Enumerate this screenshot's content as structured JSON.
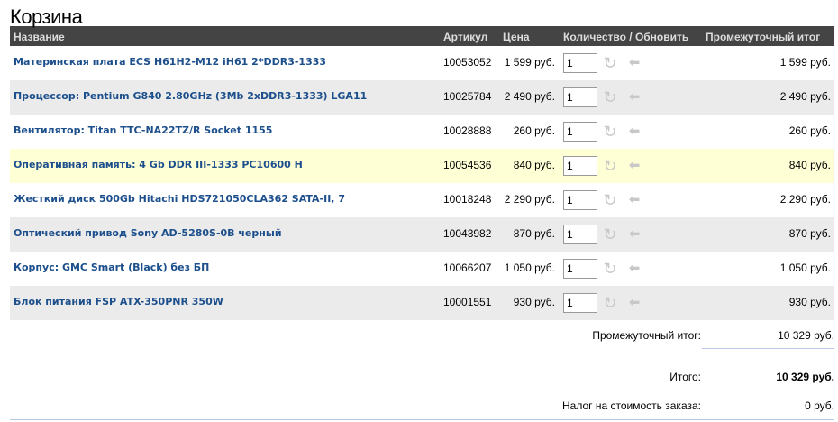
{
  "title": "Корзина",
  "columns": {
    "name": "Название",
    "sku": "Артикул",
    "price": "Цена",
    "qty": "Количество / Обновить",
    "subtotal": "Промежуточный итог"
  },
  "rows": [
    {
      "name": "Материнская плата ECS H61H2-M12 iH61 2*DDR3-1333",
      "sku": "10053052",
      "price": "1 599 руб.",
      "qty": "1",
      "subtotal": "1 599 руб."
    },
    {
      "name": "Процессор: Pentium G840 2.80GHz (3Mb 2xDDR3-1333) LGA11",
      "sku": "10025784",
      "price": "2 490 руб.",
      "qty": "1",
      "subtotal": "2 490 руб."
    },
    {
      "name": "Вентилятор: Titan TTC-NA22TZ/R Socket 1155",
      "sku": "10028888",
      "price": "260 руб.",
      "qty": "1",
      "subtotal": "260 руб."
    },
    {
      "name": "Оперативная память: 4 Gb DDR III-1333 PC10600 H",
      "sku": "10054536",
      "price": "840 руб.",
      "qty": "1",
      "subtotal": "840 руб."
    },
    {
      "name": "Жесткий диск 500Gb Hitachi HDS721050CLA362 SATA-II, 7",
      "sku": "10018248",
      "price": "2 290 руб.",
      "qty": "1",
      "subtotal": "2 290 руб."
    },
    {
      "name": "Оптический привод Sony AD-5280S-0B черный",
      "sku": "10043982",
      "price": "870 руб.",
      "qty": "1",
      "subtotal": "870 руб."
    },
    {
      "name": "Корпус: GMC Smart (Black) без БП",
      "sku": "10066207",
      "price": "1 050 руб.",
      "qty": "1",
      "subtotal": "1 050 руб."
    },
    {
      "name": "Блок питания FSP ATX-350PNR 350W",
      "sku": "10001551",
      "price": "930 руб.",
      "qty": "1",
      "subtotal": "930 руб."
    }
  ],
  "summary": {
    "subtotal_label": "Промежуточный итог:",
    "subtotal": "10 329 руб.",
    "total_label": "Итого:",
    "total": "10 329 руб.",
    "tax_label": "Налог на стоимость заказа:",
    "tax": "0 руб."
  },
  "colors": {
    "header_bg": "#444444",
    "link": "#1c4f8c",
    "row_alt": "#ebebeb",
    "row_highlight": "#ffffd6"
  },
  "icons": {
    "update": "refresh-icon",
    "remove": "return-icon"
  }
}
